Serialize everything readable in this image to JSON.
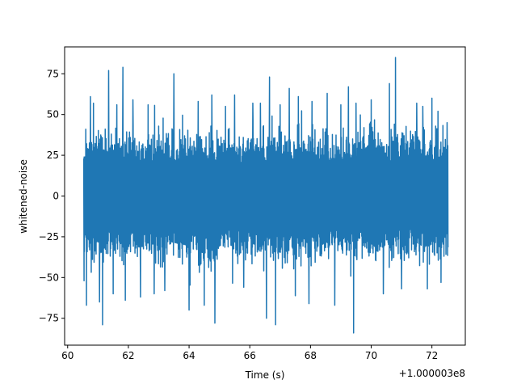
{
  "chart_data": {
    "type": "line",
    "title": "",
    "xlabel": "Time (s)",
    "ylabel": "whitened-noise",
    "x_offset_label": "+1.000003e8",
    "xlim": [
      59.9,
      73.1
    ],
    "ylim": [
      -91.5,
      91.5
    ],
    "x_ticks": [
      60,
      62,
      64,
      66,
      68,
      70,
      72
    ],
    "x_tick_labels": [
      "60",
      "62",
      "64",
      "66",
      "68",
      "70",
      "72"
    ],
    "y_ticks": [
      -75,
      -50,
      -25,
      0,
      25,
      50,
      75
    ],
    "y_tick_labels": [
      "−75",
      "−50",
      "−25",
      "0",
      "25",
      "50",
      "75"
    ],
    "grid": false,
    "series": [
      {
        "color": "#1f77b4",
        "x_start": 60.53,
        "x_end": 72.53,
        "baseline_envelope": [
          -36,
          36
        ],
        "peaks": [
          {
            "x": 60.54,
            "y": -52
          },
          {
            "x": 60.62,
            "y": -67
          },
          {
            "x": 60.75,
            "y": 61
          },
          {
            "x": 60.85,
            "y": 57
          },
          {
            "x": 61.05,
            "y": -65
          },
          {
            "x": 61.15,
            "y": -79
          },
          {
            "x": 61.35,
            "y": 77
          },
          {
            "x": 61.5,
            "y": -60
          },
          {
            "x": 61.62,
            "y": 56
          },
          {
            "x": 61.82,
            "y": 79
          },
          {
            "x": 61.9,
            "y": -64
          },
          {
            "x": 62.15,
            "y": 59
          },
          {
            "x": 62.4,
            "y": -62
          },
          {
            "x": 62.65,
            "y": 56
          },
          {
            "x": 62.85,
            "y": -60
          },
          {
            "x": 63.2,
            "y": -58
          },
          {
            "x": 63.5,
            "y": 75
          },
          {
            "x": 64.0,
            "y": -70
          },
          {
            "x": 64.3,
            "y": 58
          },
          {
            "x": 64.5,
            "y": -67
          },
          {
            "x": 64.75,
            "y": 62
          },
          {
            "x": 64.85,
            "y": -78
          },
          {
            "x": 65.2,
            "y": 55
          },
          {
            "x": 65.5,
            "y": 62
          },
          {
            "x": 65.8,
            "y": -56
          },
          {
            "x": 66.1,
            "y": 57
          },
          {
            "x": 66.35,
            "y": 57
          },
          {
            "x": 66.55,
            "y": -75
          },
          {
            "x": 66.65,
            "y": 73
          },
          {
            "x": 66.85,
            "y": -79
          },
          {
            "x": 67.0,
            "y": 56
          },
          {
            "x": 67.3,
            "y": 66
          },
          {
            "x": 67.6,
            "y": 61
          },
          {
            "x": 67.95,
            "y": -66
          },
          {
            "x": 68.05,
            "y": 58
          },
          {
            "x": 68.55,
            "y": 63
          },
          {
            "x": 68.8,
            "y": -67
          },
          {
            "x": 69.0,
            "y": 56
          },
          {
            "x": 69.25,
            "y": 67
          },
          {
            "x": 69.42,
            "y": -84
          },
          {
            "x": 69.5,
            "y": 57
          },
          {
            "x": 70.0,
            "y": 59
          },
          {
            "x": 70.4,
            "y": -60
          },
          {
            "x": 70.6,
            "y": 69
          },
          {
            "x": 70.8,
            "y": 85
          },
          {
            "x": 71.0,
            "y": -57
          },
          {
            "x": 71.5,
            "y": 57
          },
          {
            "x": 71.7,
            "y": 55
          },
          {
            "x": 71.85,
            "y": -57
          },
          {
            "x": 72.0,
            "y": 60
          },
          {
            "x": 72.2,
            "y": 52
          },
          {
            "x": 72.3,
            "y": -53
          },
          {
            "x": 72.5,
            "y": 45
          }
        ]
      }
    ]
  }
}
